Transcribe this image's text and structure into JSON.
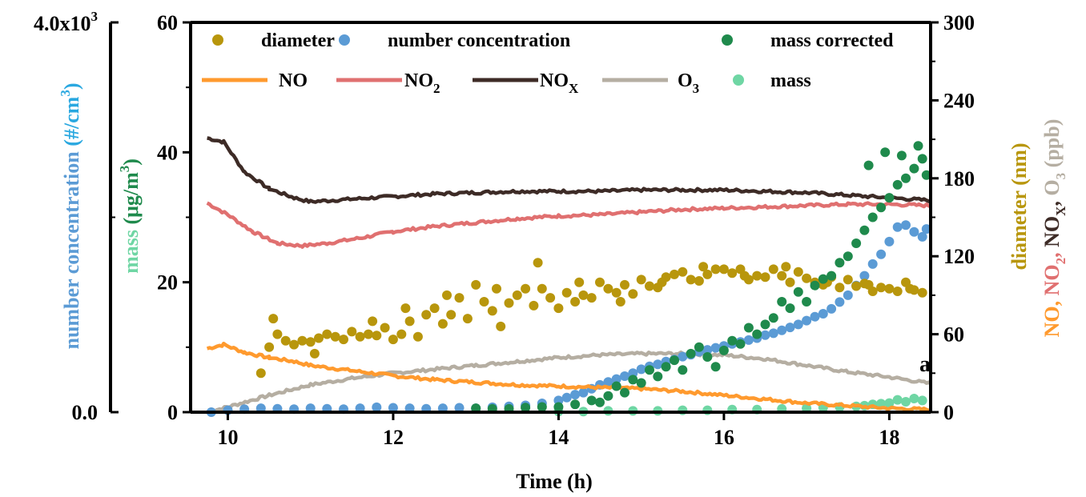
{
  "chart_data": {
    "type": "scatter",
    "xlabel": "Time (h)",
    "x_range": [
      9.55,
      18.5
    ],
    "x_ticks": [
      10,
      12,
      14,
      16,
      18
    ],
    "annotation": "a",
    "axes": {
      "number": {
        "label": [
          "number concentration",
          " (#/cm",
          "3",
          ")"
        ],
        "range": [
          0,
          4000
        ],
        "tick_labels": [
          "0.0",
          "4.0x10",
          "3"
        ],
        "color": "#5b9bd5"
      },
      "mass": {
        "label": [
          "mass",
          " (μg/m",
          "3",
          ")"
        ],
        "range": [
          0,
          60
        ],
        "ticks": [
          0,
          20,
          40,
          60
        ],
        "color": "#3cb371"
      },
      "right": {
        "range": [
          0,
          300
        ],
        "ticks": [
          0,
          60,
          120,
          180,
          240,
          300
        ],
        "label_diameter": "diameter (nm)",
        "label_gases": [
          "NO, ",
          "NO",
          "2",
          ", ",
          "NO",
          "X",
          ", ",
          "O",
          "3",
          " (ppb)"
        ]
      }
    },
    "legend": {
      "row1": [
        {
          "key": "diameter",
          "marker": "dot",
          "color": "#b8960c",
          "label": "diameter"
        },
        {
          "key": "number",
          "marker": "dot",
          "color": "#5b9bd5",
          "label": "number concentration"
        },
        {
          "key": "mass_corr",
          "marker": "dot",
          "color": "#1f8a4c",
          "label": "mass corrected"
        }
      ],
      "row2": [
        {
          "key": "no",
          "marker": "line",
          "color": "#ff9a2e",
          "label": "NO",
          "sub": ""
        },
        {
          "key": "no2",
          "marker": "line",
          "color": "#e07070",
          "label": "NO",
          "sub": "2"
        },
        {
          "key": "nox",
          "marker": "line",
          "color": "#3d2b26",
          "label": "NO",
          "sub": "X"
        },
        {
          "key": "o3",
          "marker": "line",
          "color": "#b5aea2",
          "label": "O",
          "sub": "3"
        },
        {
          "key": "mass",
          "marker": "dot",
          "color": "#6fd6a4",
          "label": "mass",
          "sub": ""
        }
      ]
    },
    "series": [
      {
        "name": "NOX",
        "kind": "line",
        "axis": "right",
        "color": "#3d2b26",
        "x": [
          9.75,
          9.95,
          10.2,
          10.5,
          10.8,
          11.0,
          11.5,
          12.0,
          12.5,
          13.0,
          13.5,
          14.0,
          14.5,
          15.0,
          15.5,
          16.0,
          16.5,
          17.0,
          17.5,
          18.0,
          18.5
        ],
        "y": [
          211,
          208,
          185,
          172,
          165,
          162,
          164,
          166,
          168,
          169,
          170,
          170,
          170,
          171,
          171,
          171,
          170,
          169,
          167,
          165,
          163
        ]
      },
      {
        "name": "NO2",
        "kind": "line",
        "axis": "right",
        "color": "#e07070",
        "x": [
          9.75,
          10.0,
          10.3,
          10.6,
          10.9,
          11.2,
          11.6,
          12.0,
          12.5,
          13.0,
          13.5,
          14.0,
          14.5,
          15.0,
          15.5,
          16.0,
          16.5,
          17.0,
          17.5,
          18.0,
          18.5
        ],
        "y": [
          161,
          152,
          139,
          130,
          128,
          130,
          134,
          139,
          143,
          146,
          149,
          151,
          152,
          154,
          156,
          157,
          158,
          159,
          160,
          160,
          159
        ]
      },
      {
        "name": "NO",
        "kind": "line",
        "axis": "right",
        "color": "#ff9a2e",
        "x": [
          9.75,
          9.95,
          10.2,
          10.5,
          10.8,
          11.0,
          11.5,
          12.0,
          12.5,
          13.0,
          13.5,
          14.0,
          14.5,
          15.0,
          15.5,
          16.0,
          16.5,
          17.0,
          17.5,
          18.0,
          18.5
        ],
        "y": [
          49,
          52,
          46,
          42,
          39,
          36,
          32,
          28,
          25,
          23,
          21,
          20,
          19,
          18,
          16,
          13,
          10,
          7,
          5,
          3,
          2
        ]
      },
      {
        "name": "O3",
        "kind": "line",
        "axis": "right",
        "color": "#b5aea2",
        "x": [
          9.75,
          10.0,
          10.5,
          11.0,
          11.5,
          12.0,
          12.5,
          13.0,
          13.5,
          14.0,
          14.5,
          15.0,
          15.5,
          16.0,
          16.5,
          17.0,
          17.5,
          18.0,
          18.5
        ],
        "y": [
          0,
          4,
          13,
          21,
          26,
          30,
          33,
          36,
          39,
          42,
          44,
          45,
          45,
          44,
          41,
          36,
          31,
          27,
          22
        ]
      },
      {
        "name": "diameter",
        "kind": "dots",
        "axis": "right",
        "color": "#b8960c",
        "x": [
          10.4,
          10.5,
          10.6,
          10.7,
          10.8,
          10.9,
          11.0,
          11.1,
          11.2,
          11.3,
          11.4,
          11.5,
          11.6,
          11.7,
          11.8,
          11.9,
          12.0,
          12.1,
          12.2,
          12.3,
          12.4,
          12.5,
          12.6,
          12.7,
          12.8,
          12.9,
          13.0,
          13.1,
          13.2,
          13.3,
          13.4,
          13.5,
          13.6,
          13.7,
          13.8,
          13.9,
          14.0,
          14.1,
          14.2,
          14.3,
          14.4,
          14.5,
          14.6,
          14.7,
          14.8,
          14.9,
          15.0,
          15.1,
          15.2,
          15.3,
          15.4,
          15.5,
          15.6,
          15.7,
          15.8,
          15.9,
          16.0,
          16.1,
          16.2,
          16.3,
          16.4,
          16.5,
          16.6,
          16.7,
          16.8,
          16.9,
          17.0,
          17.1,
          17.2,
          17.3,
          17.4,
          17.5,
          17.6,
          17.7,
          17.8,
          17.9,
          18.0,
          18.1,
          18.2,
          18.3,
          18.4,
          10.55,
          11.05,
          11.75,
          12.15,
          12.65,
          13.25,
          13.75,
          14.25,
          14.75,
          15.25,
          15.75,
          16.25,
          16.75,
          17.25,
          17.75,
          18.25
        ],
        "y": [
          30,
          50,
          60,
          55,
          52,
          55,
          54,
          57,
          60,
          58,
          56,
          62,
          58,
          60,
          59,
          65,
          56,
          60,
          70,
          58,
          75,
          80,
          68,
          75,
          88,
          72,
          98,
          85,
          78,
          66,
          84,
          90,
          95,
          82,
          95,
          88,
          80,
          92,
          85,
          90,
          88,
          100,
          95,
          92,
          98,
          91,
          102,
          97,
          96,
          104,
          106,
          108,
          102,
          101,
          106,
          110,
          110,
          107,
          110,
          102,
          105,
          104,
          110,
          105,
          100,
          108,
          103,
          100,
          98,
          104,
          96,
          102,
          97,
          99,
          93,
          96,
          95,
          93,
          100,
          94,
          92,
          72,
          45,
          70,
          80,
          90,
          95,
          115,
          100,
          85,
          100,
          112,
          105,
          112,
          100,
          98,
          95
        ]
      },
      {
        "name": "number concentration",
        "kind": "dots",
        "axis": "number",
        "color": "#5b9bd5",
        "x": [
          9.8,
          10.0,
          10.2,
          10.4,
          10.6,
          10.8,
          11.0,
          11.2,
          11.4,
          11.6,
          11.8,
          12.0,
          12.2,
          12.4,
          12.6,
          12.8,
          13.0,
          13.2,
          13.4,
          13.6,
          13.8,
          14.0,
          14.1,
          14.2,
          14.3,
          14.4,
          14.5,
          14.6,
          14.7,
          14.8,
          14.9,
          15.0,
          15.1,
          15.2,
          15.3,
          15.4,
          15.5,
          15.6,
          15.7,
          15.8,
          15.9,
          16.0,
          16.1,
          16.2,
          16.3,
          16.4,
          16.5,
          16.6,
          16.7,
          16.8,
          16.9,
          17.0,
          17.1,
          17.2,
          17.3,
          17.4,
          17.5,
          17.6,
          17.7,
          17.8,
          17.9,
          18.0,
          18.1,
          18.2,
          18.3,
          18.4,
          18.45
        ],
        "y": [
          0,
          20,
          30,
          40,
          35,
          30,
          40,
          35,
          30,
          40,
          50,
          45,
          40,
          35,
          40,
          45,
          40,
          50,
          60,
          70,
          90,
          120,
          150,
          180,
          200,
          240,
          280,
          310,
          340,
          370,
          400,
          440,
          470,
          490,
          520,
          540,
          570,
          590,
          620,
          640,
          660,
          680,
          700,
          720,
          740,
          760,
          790,
          810,
          840,
          870,
          900,
          940,
          980,
          1010,
          1060,
          1130,
          1200,
          1300,
          1400,
          1520,
          1620,
          1750,
          1900,
          1920,
          1850,
          1800,
          1880
        ]
      },
      {
        "name": "mass corrected",
        "kind": "dots",
        "axis": "mass",
        "color": "#1f8a4c",
        "x": [
          13.0,
          13.2,
          13.4,
          13.6,
          13.8,
          14.0,
          14.2,
          14.4,
          14.5,
          14.6,
          14.7,
          14.8,
          14.9,
          15.0,
          15.1,
          15.2,
          15.3,
          15.4,
          15.5,
          15.6,
          15.7,
          15.8,
          15.9,
          16.0,
          16.1,
          16.2,
          16.3,
          16.4,
          16.5,
          16.6,
          16.7,
          16.8,
          16.9,
          17.0,
          17.1,
          17.2,
          17.3,
          17.4,
          17.5,
          17.6,
          17.7,
          17.8,
          17.9,
          18.0,
          18.1,
          18.2,
          18.3,
          18.4,
          18.45,
          17.75,
          17.95,
          18.15,
          18.35
        ],
        "y": [
          0.6,
          0.5,
          0.5,
          0.7,
          0.8,
          0.8,
          1.2,
          1.8,
          1.5,
          2.5,
          4.0,
          3.0,
          5.0,
          4.5,
          6.5,
          5.5,
          7.0,
          8.0,
          6.5,
          9.0,
          10.0,
          8.5,
          7.0,
          9.5,
          11.0,
          10.5,
          13.0,
          12.0,
          13.5,
          14.5,
          17.0,
          16.0,
          18.5,
          17.0,
          19.5,
          20.5,
          21.0,
          23.0,
          24.0,
          26.0,
          28.0,
          30.0,
          31.5,
          33.0,
          35.0,
          36.0,
          37.5,
          39.0,
          36.5,
          38.0,
          40.0,
          39.5,
          41.0
        ]
      },
      {
        "name": "mass",
        "kind": "dots",
        "axis": "mass",
        "color": "#6fd6a4",
        "x": [
          14.0,
          14.3,
          14.6,
          14.9,
          15.2,
          15.5,
          15.8,
          16.1,
          16.4,
          16.7,
          17.0,
          17.2,
          17.4,
          17.6,
          17.8,
          18.0,
          18.2,
          18.4,
          17.7,
          17.9,
          18.1,
          18.3
        ],
        "y": [
          0.1,
          0.1,
          0.2,
          0.2,
          0.2,
          0.3,
          0.3,
          0.4,
          0.4,
          0.5,
          0.6,
          0.7,
          0.8,
          0.9,
          1.2,
          1.4,
          1.6,
          1.8,
          1.0,
          1.3,
          1.9,
          2.1
        ]
      }
    ]
  }
}
